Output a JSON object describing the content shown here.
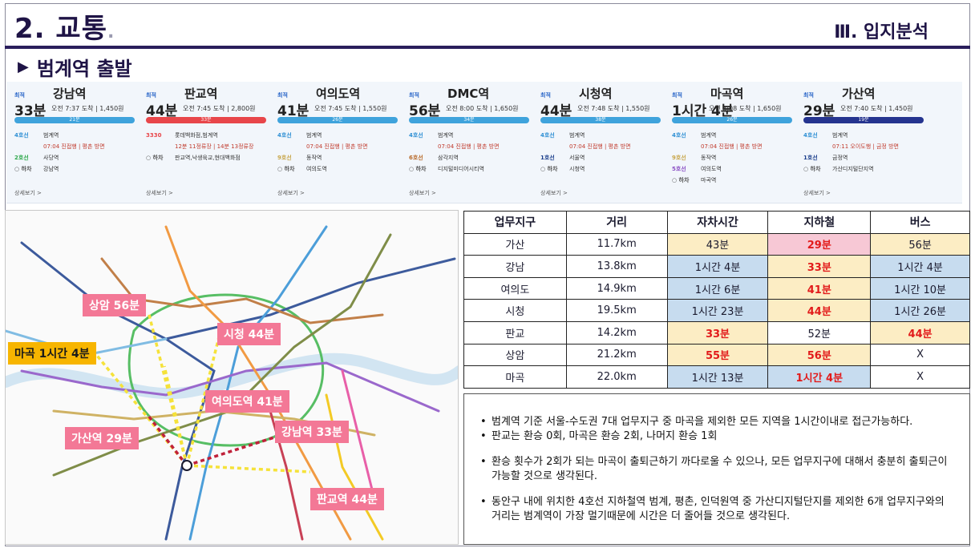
{
  "header": {
    "title": "2. 교통",
    "title_dot": ".",
    "section": "Ⅲ. 입지분석",
    "subtitle_marker": "▶",
    "subtitle": "범계역 출발"
  },
  "routes": [
    {
      "label": "최적",
      "dest": "강남역",
      "time": "33분",
      "info": "오전 7:37 도착 | 1,450원",
      "bar_text": "21분",
      "bar_color": "#3fa3dc",
      "rows": [
        {
          "line": "4호선",
          "text": "범계역",
          "color": "#2e8fd4"
        },
        {
          "line": "",
          "text": "07:04 진접행 | 평촌 방면",
          "sub": true
        },
        {
          "line": "2호선",
          "text": "사당역",
          "color": "#2ca84a"
        },
        {
          "line": "○ 하차",
          "text": "강남역",
          "color": "#555"
        }
      ],
      "more": "상세보기 >"
    },
    {
      "label": "최적",
      "dest": "판교역",
      "time": "44분",
      "info": "오전 7:45 도착 | 2,800원",
      "bar_text": "33분",
      "bar_color": "#e8464a",
      "rows": [
        {
          "line": "3330",
          "text": "롯데백화점,범계역",
          "color": "#e8464a"
        },
        {
          "line": "",
          "text": "12분 11정류장 | 14분 13정류장",
          "sub": true
        },
        {
          "line": "○ 하차",
          "text": "판교역,낙생육교,현대백화점",
          "color": "#555"
        }
      ],
      "more": "상세보기 >"
    },
    {
      "label": "최적",
      "dest": "여의도역",
      "time": "41분",
      "info": "오전 7:45 도착 | 1,550원",
      "bar_text": "26분",
      "bar_color": "#3fa3dc",
      "rows": [
        {
          "line": "4호선",
          "text": "범계역",
          "color": "#2e8fd4"
        },
        {
          "line": "",
          "text": "07:04 진접행 | 평촌 방면",
          "sub": true
        },
        {
          "line": "9호선",
          "text": "동작역",
          "color": "#c8a64a"
        },
        {
          "line": "○ 하차",
          "text": "여의도역",
          "color": "#555"
        }
      ],
      "more": "상세보기 >"
    },
    {
      "label": "최적",
      "dest": "DMC역",
      "time": "56분",
      "info": "오전 8:00 도착 | 1,650원",
      "bar_text": "34분",
      "bar_color": "#3fa3dc",
      "rows": [
        {
          "line": "4호선",
          "text": "범계역",
          "color": "#2e8fd4"
        },
        {
          "line": "",
          "text": "07:04 진접행 | 평촌 방면",
          "sub": true
        },
        {
          "line": "6호선",
          "text": "삼각지역",
          "color": "#b86a2a"
        },
        {
          "line": "○ 하차",
          "text": "디지털미디어시티역",
          "color": "#555"
        }
      ],
      "more": "상세보기 >"
    },
    {
      "label": "최적",
      "dest": "시청역",
      "time": "44분",
      "info": "오전 7:48 도착 | 1,550원",
      "bar_text": "38분",
      "bar_color": "#3fa3dc",
      "rows": [
        {
          "line": "4호선",
          "text": "범계역",
          "color": "#2e8fd4"
        },
        {
          "line": "",
          "text": "07:04 진접행 | 평촌 방면",
          "sub": true
        },
        {
          "line": "1호선",
          "text": "서울역",
          "color": "#1c3f8c"
        },
        {
          "line": "○ 하차",
          "text": "시청역",
          "color": "#555"
        }
      ],
      "more": "상세보기 >"
    },
    {
      "label": "최적",
      "dest": "마곡역",
      "time": "1시간 4분",
      "info": "오전 8:08 도착 | 1,650원",
      "bar_text": "26분",
      "bar_color": "#3fa3dc",
      "rows": [
        {
          "line": "4호선",
          "text": "범계역",
          "color": "#2e8fd4"
        },
        {
          "line": "",
          "text": "07:04 진접행 | 평촌 방면",
          "sub": true
        },
        {
          "line": "9호선",
          "text": "동작역",
          "color": "#c8a64a"
        },
        {
          "line": "5호선",
          "text": "여의도역",
          "color": "#8a4fc4"
        },
        {
          "line": "○ 하차",
          "text": "마곡역",
          "color": "#555"
        }
      ],
      "more": ""
    },
    {
      "label": "최적",
      "dest": "가산역",
      "time": "29분",
      "info": "오전 7:40 도착 | 1,450원",
      "bar_text": "19분",
      "bar_color": "#25348f",
      "rows": [
        {
          "line": "4호선",
          "text": "범계역",
          "color": "#2e8fd4"
        },
        {
          "line": "",
          "text": "07:11 오이도행 | 금정 방면",
          "sub": true
        },
        {
          "line": "1호선",
          "text": "금정역",
          "color": "#1c3f8c"
        },
        {
          "line": "○ 하차",
          "text": "가산디지털단지역",
          "color": "#555"
        }
      ],
      "more": "상세보기 >"
    }
  ],
  "map_labels": {
    "sangam": "상암 56분",
    "magok": "마곡 1시간 4분",
    "sicheong": "시청 44분",
    "yeouido": "여의도역 41분",
    "gasan": "가산역 29분",
    "gangnam": "강남역 33분",
    "pangyo": "판교역 44분"
  },
  "table": {
    "headers": [
      "업무지구",
      "거리",
      "자차시간",
      "지하철",
      "버스"
    ],
    "rows": [
      {
        "name": "가산",
        "dist": "11.7km",
        "car": "43분",
        "sub": "29분",
        "bus": "56분"
      },
      {
        "name": "강남",
        "dist": "13.8km",
        "car": "1시간 4분",
        "sub": "33분",
        "bus": "1시간 4분"
      },
      {
        "name": "여의도",
        "dist": "14.9km",
        "car": "1시간 6분",
        "sub": "41분",
        "bus": "1시간 10분"
      },
      {
        "name": "시청",
        "dist": "19.5km",
        "car": "1시간 23분",
        "sub": "44분",
        "bus": "1시간 26분"
      },
      {
        "name": "판교",
        "dist": "14.2km",
        "car": "33분",
        "sub": "52분",
        "bus": "44분"
      },
      {
        "name": "상암",
        "dist": "21.2km",
        "car": "55분",
        "sub": "56분",
        "bus": "X"
      },
      {
        "name": "마곡",
        "dist": "22.0km",
        "car": "1시간 13분",
        "sub": "1시간 4분",
        "bus": "X"
      }
    ]
  },
  "notes": [
    "범계역 기준 서울-수도권 7대 업무지구 중 마곡을 제외한 모든 지역을 1시간이내로 접근가능하다.",
    "판교는 환승 0회, 마곡은 환승 2회, 나머지 환승 1회",
    "환승 횟수가 2회가 되는 마곡이 출퇴근하기 까다로울 수 있으나, 모든 업무지구에 대해서 충분히 출퇴근이 가능할 것으로 생각된다.",
    "동안구 내에 위치한 4호선 지하철역 범계, 평촌, 인덕원역 중 가산디지털단지를 제외한 6개 업무지구와의 거리는 범계역이 가장 멀기때문에 시간은 더 줄어들 것으로 생각된다."
  ],
  "colors": {
    "title": "#1f1446",
    "rule": "#2a1e5c",
    "map_label": "#f37896",
    "map_label_highlight": "#f7b500",
    "cell_yellow": "#fcedc4",
    "cell_blue": "#c7dcef",
    "cell_pink": "#f7c8d5",
    "emphasis_red": "#e21b1b"
  }
}
